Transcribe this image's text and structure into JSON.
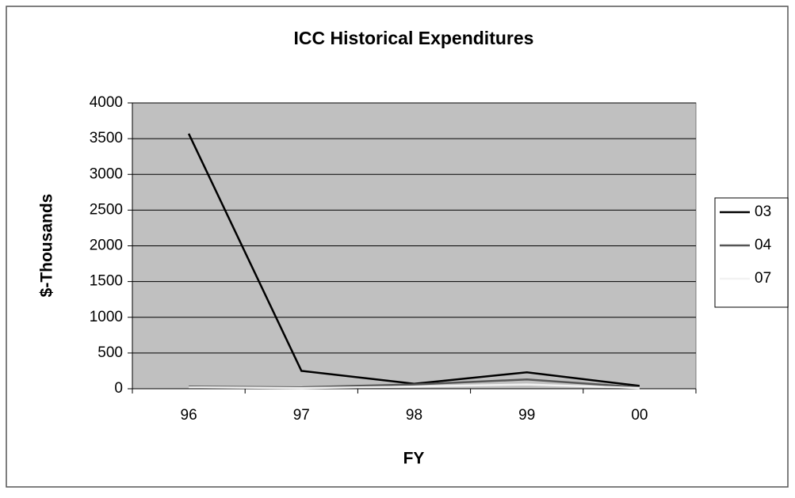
{
  "chart_data": {
    "type": "line",
    "title": "ICC Historical Expenditures",
    "x_label": "FY",
    "y_label": "$-Thousands",
    "categories": [
      "96",
      "97",
      "98",
      "99",
      "00"
    ],
    "series": [
      {
        "name": "03",
        "color": "#000000",
        "values": [
          3570,
          250,
          70,
          230,
          40
        ]
      },
      {
        "name": "04",
        "color": "#555555",
        "values": [
          30,
          20,
          60,
          130,
          20
        ]
      },
      {
        "name": "07",
        "color": "#f2f2f2",
        "values": [
          20,
          10,
          30,
          60,
          10
        ]
      }
    ],
    "ylim": [
      0,
      4000
    ],
    "yticks": [
      0,
      500,
      1000,
      1500,
      2000,
      2500,
      3000,
      3500,
      4000
    ],
    "grid": true,
    "legend": "right",
    "plot_background": "#c0c0c0"
  }
}
